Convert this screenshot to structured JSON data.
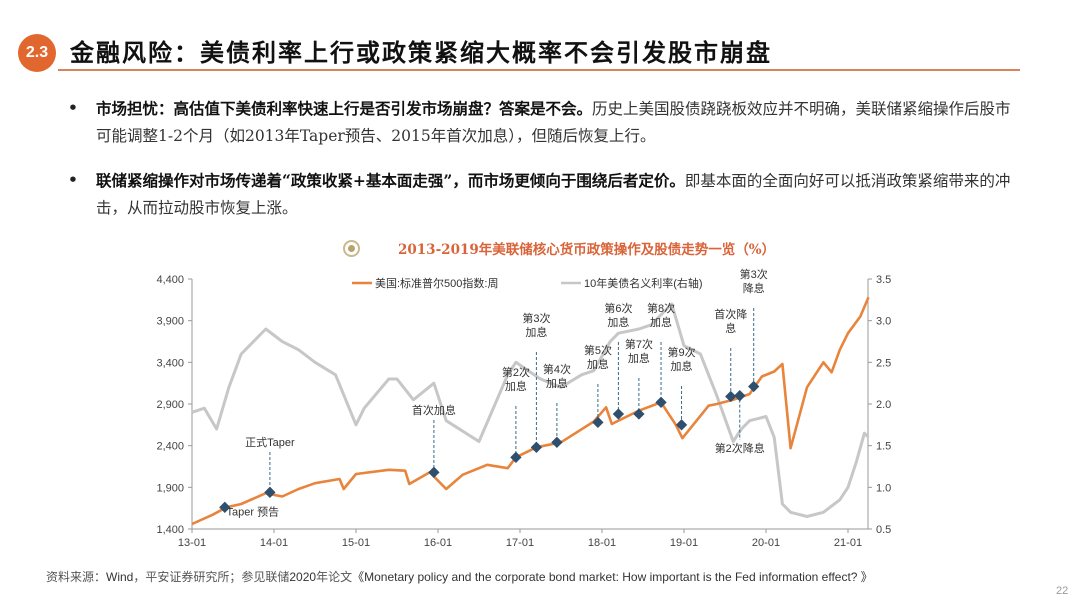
{
  "header": {
    "section_badge": "2.3",
    "title": "金融风险：美债利率上行或政策紧缩大概率不会引发股市崩盘"
  },
  "bullets": [
    {
      "bold": "市场担忧：高估值下美债利率快速上行是否引发市场崩盘？答案是不会。",
      "normal": "历史上美国股债跷跷板效应并不明确，美联储紧缩操作后股市可能调整1-2个月（如2013年Taper预告、2015年首次加息），但随后恢复上行。"
    },
    {
      "bold": "联储紧缩操作对市场传递着“政策收紧+基本面走强”，而市场更倾向于围绕后者定价。",
      "normal": "即基本面的全面向好可以抵消政策紧缩带来的冲击，从而拉动股市恢复上涨。"
    }
  ],
  "chart_title": "2013-2019年美联储核心货币政策操作及股债走势一览（%）",
  "chart_data": {
    "type": "line",
    "title": "2013-2019年美联储核心货币政策操作及股债走势一览（%）",
    "xlabel": "",
    "ylabel_left": "",
    "ylabel_right": "",
    "x_ticks": [
      "13-01",
      "14-01",
      "15-01",
      "16-01",
      "17-01",
      "18-01",
      "19-01",
      "20-01",
      "21-01"
    ],
    "y_left_ticks": [
      "1,400",
      "1,900",
      "2,400",
      "2,900",
      "3,400",
      "3,900",
      "4,400"
    ],
    "y_right_ticks": [
      "0.5",
      "1.0",
      "1.5",
      "2.0",
      "2.5",
      "3.0",
      "3.5"
    ],
    "ylim_left": [
      1400,
      4400
    ],
    "ylim_right": [
      0.5,
      3.5
    ],
    "grid": false,
    "legend_position": "top",
    "series": [
      {
        "name": "美国:标准普尔500指数:周",
        "axis": "left",
        "color": "#e8843c",
        "x": [
          2013.0,
          2013.25,
          2013.42,
          2013.6,
          2013.9,
          2014.1,
          2014.3,
          2014.5,
          2014.8,
          2014.85,
          2015.0,
          2015.4,
          2015.6,
          2015.65,
          2015.9,
          2016.1,
          2016.3,
          2016.6,
          2016.85,
          2016.95,
          2017.2,
          2017.5,
          2017.9,
          2018.05,
          2018.12,
          2018.2,
          2018.45,
          2018.72,
          2018.9,
          2018.98,
          2019.3,
          2019.4,
          2019.6,
          2019.8,
          2019.95,
          2020.1,
          2020.2,
          2020.3,
          2020.5,
          2020.7,
          2020.8,
          2020.9,
          2021.0,
          2021.15,
          2021.25
        ],
        "values": [
          1460,
          1570,
          1660,
          1700,
          1830,
          1790,
          1880,
          1950,
          2000,
          1880,
          2060,
          2110,
          2100,
          1940,
          2080,
          1880,
          2050,
          2170,
          2130,
          2260,
          2380,
          2440,
          2690,
          2860,
          2660,
          2700,
          2820,
          2920,
          2650,
          2490,
          2880,
          2900,
          2950,
          3020,
          3230,
          3290,
          3380,
          2370,
          3100,
          3400,
          3280,
          3550,
          3750,
          3950,
          4180
        ]
      },
      {
        "name": "10年美债名义利率(右轴)",
        "axis": "right",
        "color": "#c7c7c7",
        "x": [
          2013.0,
          2013.15,
          2013.3,
          2013.45,
          2013.6,
          2013.7,
          2013.9,
          2014.1,
          2014.3,
          2014.5,
          2014.75,
          2015.0,
          2015.1,
          2015.4,
          2015.5,
          2015.7,
          2015.95,
          2016.1,
          2016.5,
          2016.85,
          2016.95,
          2017.1,
          2017.25,
          2017.5,
          2017.75,
          2017.9,
          2018.1,
          2018.2,
          2018.45,
          2018.6,
          2018.85,
          2019.0,
          2019.2,
          2019.4,
          2019.6,
          2019.7,
          2019.8,
          2020.0,
          2020.1,
          2020.2,
          2020.3,
          2020.5,
          2020.7,
          2020.9,
          2021.0,
          2021.1,
          2021.2,
          2021.25
        ],
        "values": [
          1.9,
          1.95,
          1.7,
          2.2,
          2.6,
          2.7,
          2.9,
          2.75,
          2.65,
          2.5,
          2.35,
          1.75,
          1.95,
          2.3,
          2.3,
          2.05,
          2.25,
          1.8,
          1.55,
          2.35,
          2.5,
          2.4,
          2.3,
          2.2,
          2.35,
          2.4,
          2.75,
          2.85,
          2.9,
          2.95,
          3.2,
          2.7,
          2.6,
          2.1,
          1.55,
          1.7,
          1.8,
          1.85,
          1.6,
          0.8,
          0.7,
          0.65,
          0.7,
          0.85,
          1.0,
          1.3,
          1.65,
          1.6
        ]
      }
    ],
    "annotations": [
      {
        "label": "Taper 预告",
        "x": 2013.4,
        "y": 1660
      },
      {
        "label": "正式Taper",
        "x": 2013.95,
        "y": 1840
      },
      {
        "label": "首次加息",
        "x": 2015.95,
        "y": 2080
      },
      {
        "label": "第2次加息",
        "x": 2016.95,
        "y": 2260
      },
      {
        "label": "第3次加息",
        "x": 2017.2,
        "y": 2380
      },
      {
        "label": "第4次加息",
        "x": 2017.45,
        "y": 2440
      },
      {
        "label": "第5次加息",
        "x": 2017.95,
        "y": 2680
      },
      {
        "label": "第6次加息",
        "x": 2018.2,
        "y": 2780
      },
      {
        "label": "第7次加息",
        "x": 2018.45,
        "y": 2780
      },
      {
        "label": "第8次加息",
        "x": 2018.72,
        "y": 2920
      },
      {
        "label": "第9次加息",
        "x": 2018.97,
        "y": 2650
      },
      {
        "label": "首次降息",
        "x": 2019.57,
        "y": 2990
      },
      {
        "label": "第2次降息",
        "x": 2019.68,
        "y": 3000
      },
      {
        "label": "第3次降息",
        "x": 2019.85,
        "y": 3110
      }
    ]
  },
  "legend": [
    {
      "label": "美国:标准普尔500指数:周",
      "color": "#e8843c"
    },
    {
      "label": "10年美债名义利率(右轴)",
      "color": "#c7c7c7"
    }
  ],
  "source": {
    "prefix_cn": "资料来源：",
    "wind": "Wind",
    "mid_cn": "，平安证券研究所；参见联储",
    "year": "2020",
    "paper_cn": "年论文",
    "paper": "《Monetary policy and the corporate bond market: How important is the Fed information effect? 》"
  },
  "page_number": "22",
  "colors": {
    "accent": "#e2672e",
    "title_rule": "#d9835a",
    "chart_title": "#d9643a",
    "marker": "#2f4f6f"
  }
}
